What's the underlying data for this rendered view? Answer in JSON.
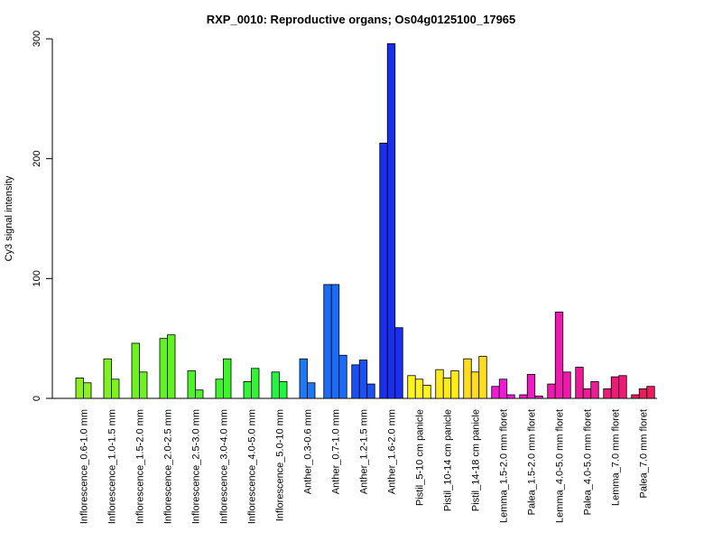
{
  "chart_data": {
    "type": "bar",
    "title": "RXP_0010: Reproductive organs; Os04g0125100_17965",
    "ylabel": "Cy3 signal intensity",
    "xlabel": "",
    "ylim": [
      0,
      300
    ],
    "yticks": [
      0,
      100,
      200,
      300
    ],
    "grid": false,
    "groups": [
      {
        "label": "Inflorescence_0.6-1.0 mm",
        "color": "#8CF01C",
        "values": [
          17,
          13
        ]
      },
      {
        "label": "Inflorescence_1.0-1.5 mm",
        "color": "#7EF11E",
        "values": [
          33,
          16
        ]
      },
      {
        "label": "Inflorescence_1.5-2.0 mm",
        "color": "#6FF221",
        "values": [
          46,
          22
        ]
      },
      {
        "label": "Inflorescence_2.0-2.5 mm",
        "color": "#5FF324",
        "values": [
          50,
          53
        ]
      },
      {
        "label": "Inflorescence_2.5-3.0 mm",
        "color": "#4FF428",
        "values": [
          23,
          7
        ]
      },
      {
        "label": "Inflorescence_3.0-4.0 mm",
        "color": "#3EF52C",
        "values": [
          16,
          33
        ]
      },
      {
        "label": "Inflorescence_4.0-5.0 mm",
        "color": "#2EF632",
        "values": [
          14,
          25
        ]
      },
      {
        "label": "Inflorescence_5.0-10 mm",
        "color": "#22F43F",
        "values": [
          22,
          14
        ]
      },
      {
        "label": "Anther_0.3-0.6 mm",
        "color": "#1B79F6",
        "values": [
          33,
          13
        ]
      },
      {
        "label": "Anther_0.7-1.0 mm",
        "color": "#1A6BF5",
        "values": [
          95,
          95,
          36
        ]
      },
      {
        "label": "Anther_1.2-1.5 mm",
        "color": "#1A50F4",
        "values": [
          28,
          32,
          12
        ]
      },
      {
        "label": "Anther_1.6-2.0 mm",
        "color": "#1A2EF0",
        "values": [
          213,
          296,
          59
        ]
      },
      {
        "label": "Pistil_5-10 cm panicle",
        "color": "#FFF51A",
        "values": [
          19,
          16,
          11
        ]
      },
      {
        "label": "Pistil_10-14 cm panicle",
        "color": "#FFEA1A",
        "values": [
          24,
          17,
          23
        ]
      },
      {
        "label": "Pistil_14-18 cm panicle",
        "color": "#FFDD1A",
        "values": [
          33,
          22,
          35
        ]
      },
      {
        "label": "Lemma_1.5-2.0 mm floret",
        "color": "#EE1AD6",
        "values": [
          10,
          16,
          3
        ]
      },
      {
        "label": "Palea_1.5-2.0 mm floret",
        "color": "#EE1AC4",
        "values": [
          3,
          20,
          2
        ]
      },
      {
        "label": "Lemma_4.0-5.0 mm floret",
        "color": "#EE1AAE",
        "values": [
          12,
          72,
          22
        ]
      },
      {
        "label": "Palea_4.0-5.0 mm floret",
        "color": "#EE1A96",
        "values": [
          26,
          8,
          14
        ]
      },
      {
        "label": "Lemma_7.0 mm floret",
        "color": "#EE1A78",
        "values": [
          8,
          18,
          19
        ]
      },
      {
        "label": "Palea_7.0 mm floret",
        "color": "#EE1A5E",
        "values": [
          3,
          8,
          10
        ]
      }
    ]
  }
}
